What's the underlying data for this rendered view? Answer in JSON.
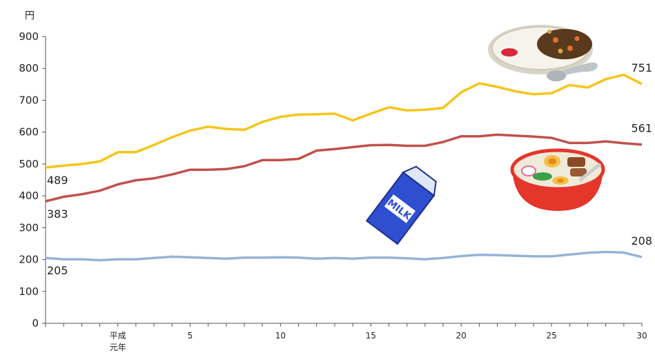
{
  "chart_data": {
    "type": "line",
    "ylabel": "円",
    "ylim": [
      0,
      900
    ],
    "yticks": [
      0,
      100,
      200,
      300,
      400,
      500,
      600,
      700,
      800,
      900
    ],
    "x": [
      1,
      2,
      3,
      4,
      5,
      6,
      7,
      8,
      9,
      10,
      11,
      12,
      13,
      14,
      15,
      16,
      17,
      18,
      19,
      20,
      21,
      22,
      23,
      24,
      25,
      26,
      27,
      28,
      29,
      30,
      31,
      32,
      33,
      34
    ],
    "x_tick_labels": [
      {
        "x": 5,
        "lines": [
          "平成",
          "元年"
        ]
      },
      {
        "x": 9,
        "lines": [
          "5"
        ]
      },
      {
        "x": 14,
        "lines": [
          "10"
        ]
      },
      {
        "x": 19,
        "lines": [
          "15"
        ]
      },
      {
        "x": 24,
        "lines": [
          "20"
        ]
      },
      {
        "x": 29,
        "lines": [
          "25"
        ]
      },
      {
        "x": 34,
        "lines": [
          "30"
        ]
      }
    ],
    "grid": false,
    "series": [
      {
        "color": "#F5C518",
        "values": [
          489,
          495,
          500,
          508,
          537,
          537,
          560,
          584,
          605,
          617,
          610,
          607,
          632,
          648,
          655,
          656,
          658,
          637,
          658,
          678,
          668,
          670,
          676,
          725,
          753,
          742,
          728,
          719,
          722,
          748,
          740,
          766,
          780,
          751
        ],
        "start_label": "489",
        "end_label": "751"
      },
      {
        "color": "#C0504D",
        "values": [
          383,
          397,
          405,
          416,
          436,
          449,
          455,
          467,
          482,
          482,
          484,
          493,
          512,
          512,
          516,
          542,
          547,
          553,
          559,
          560,
          557,
          557,
          569,
          587,
          587,
          592,
          589,
          586,
          582,
          566,
          566,
          571,
          565,
          561
        ],
        "start_label": "383",
        "end_label": "561"
      },
      {
        "color": "#95B3D7",
        "values": [
          205,
          201,
          201,
          198,
          201,
          201,
          205,
          209,
          207,
          205,
          203,
          206,
          206,
          207,
          206,
          203,
          205,
          203,
          206,
          206,
          204,
          201,
          205,
          211,
          215,
          214,
          212,
          210,
          210,
          216,
          221,
          224,
          222,
          208
        ],
        "start_label": "205",
        "end_label": "208"
      }
    ],
    "icons": [
      "curry-rice-icon",
      "ramen-bowl-icon",
      "milk-carton-icon"
    ],
    "icon_text": {
      "milk": "MILK"
    }
  }
}
